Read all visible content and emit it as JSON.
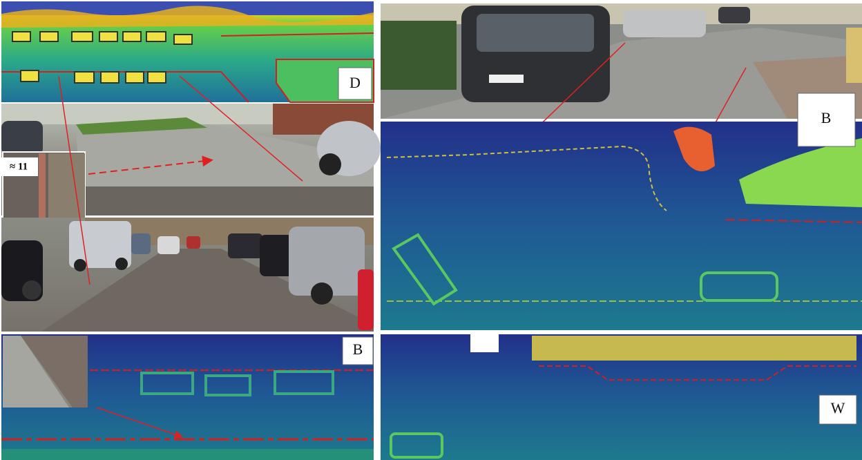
{
  "panels": [
    {
      "label": "D"
    },
    {
      "label": "B"
    },
    {
      "label": "B"
    },
    {
      "label": "W"
    }
  ],
  "inset_label": "≈ 11"
}
